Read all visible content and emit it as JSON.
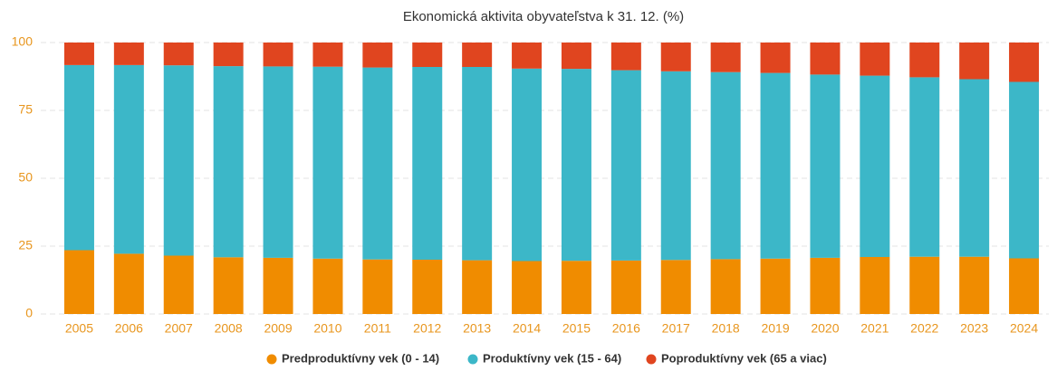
{
  "chart_data": {
    "type": "stacked_bar",
    "title": "Ekonomická aktivita obyvateľstva k 31. 12. (%)",
    "categories": [
      "2005",
      "2006",
      "2007",
      "2008",
      "2009",
      "2010",
      "2011",
      "2012",
      "2013",
      "2014",
      "2015",
      "2016",
      "2017",
      "2018",
      "2019",
      "2020",
      "2021",
      "2022",
      "2023",
      "2024"
    ],
    "series": [
      {
        "name": "Predproduktívny vek (0 - 14)",
        "color": "#f08c00",
        "values": [
          23.5,
          22.2,
          21.5,
          20.9,
          20.7,
          20.4,
          20.1,
          20.0,
          19.8,
          19.5,
          19.6,
          19.7,
          19.9,
          20.2,
          20.4,
          20.7,
          21.0,
          21.1,
          21.1,
          20.5
        ]
      },
      {
        "name": "Produktívny vek (15 - 64)",
        "color": "#3cb7c8",
        "values": [
          68.2,
          69.5,
          70.1,
          70.4,
          70.5,
          70.7,
          70.7,
          71.0,
          71.2,
          70.9,
          70.7,
          70.1,
          69.5,
          68.9,
          68.4,
          67.5,
          66.8,
          66.1,
          65.4,
          65.0
        ]
      },
      {
        "name": "Poproduktívny vek (65 a viac)",
        "color": "#e0451f",
        "values": [
          8.3,
          8.3,
          8.4,
          8.7,
          8.8,
          8.9,
          9.2,
          9.0,
          9.0,
          9.6,
          9.7,
          10.2,
          10.6,
          10.9,
          11.2,
          11.8,
          12.2,
          12.8,
          13.5,
          14.5
        ]
      }
    ],
    "ylim": [
      0,
      100
    ],
    "yticks": [
      0,
      25,
      50,
      75,
      100
    ],
    "grid": true,
    "legend": "bottom"
  }
}
